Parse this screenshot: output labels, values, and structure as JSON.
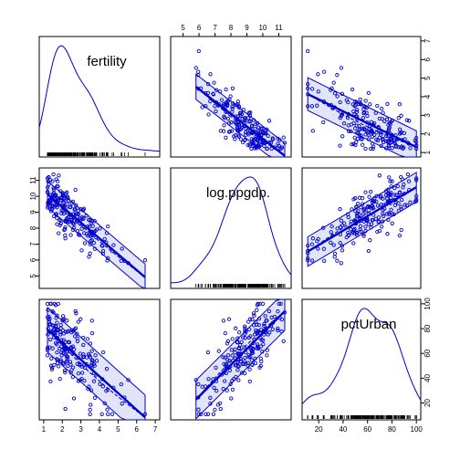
{
  "colors": {
    "accent": "#0000cc",
    "band_fill": "#5d6fd8",
    "axis": "#000000"
  },
  "chart_data": {
    "type": "scatter",
    "variables": [
      "fertility",
      "log.ppgdp",
      "pctUrban"
    ],
    "diagonal_labels": [
      "fertility",
      "log.ppgdp.",
      "pctUrban"
    ],
    "ranges": {
      "fertility": [
        1,
        7
      ],
      "log.ppgdp": [
        4.5,
        11.5
      ],
      "pctUrban": [
        10,
        100
      ]
    },
    "ticks": {
      "fertility": [
        1,
        2,
        3,
        4,
        5,
        6,
        7
      ],
      "log.ppgdp": [
        5,
        6,
        7,
        8,
        9,
        10,
        11
      ],
      "pctUrban": [
        20,
        40,
        60,
        80,
        100
      ]
    },
    "fits": {
      "fertility|log.ppgdp": {
        "slope": -0.95,
        "intercept": 11.15
      },
      "fertility|pctUrban": {
        "slope": -0.09,
        "intercept": 8.3
      },
      "log.ppgdp|pctUrban": {
        "slope": 0.035,
        "intercept": 6.1
      }
    },
    "noise": {
      "fertility": 0.55,
      "log.ppgdp": 0.65,
      "pctUrban": 14
    },
    "seed": 7,
    "n_points": 199,
    "grid": false
  }
}
